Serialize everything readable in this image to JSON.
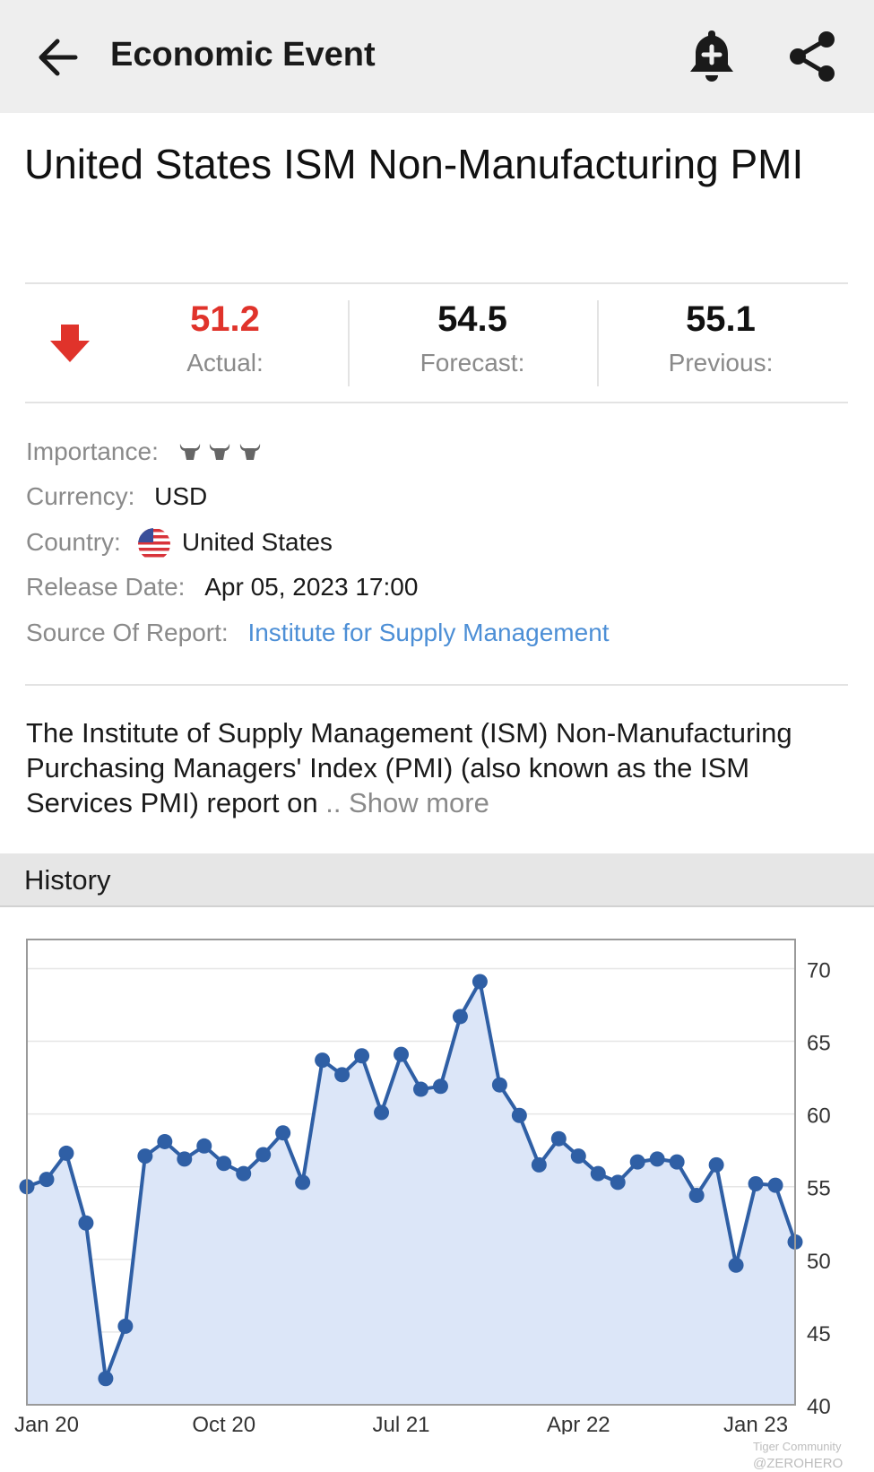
{
  "header": {
    "title": "Economic Event",
    "back_icon": "arrow-left-icon",
    "bell_icon": "bell-plus-icon",
    "share_icon": "share-icon"
  },
  "event": {
    "title": "United States ISM Non-Manufacturing PMI"
  },
  "stats": {
    "direction_icon": "arrow-down-icon",
    "actual_value": "51.2",
    "actual_label": "Actual:",
    "forecast_value": "54.5",
    "forecast_label": "Forecast:",
    "previous_value": "55.1",
    "previous_label": "Previous:",
    "actual_color": "#e0332b"
  },
  "info": {
    "importance_label": "Importance:",
    "importance_level": 3,
    "importance_icon": "bull-icon",
    "currency_label": "Currency:",
    "currency_value": "USD",
    "country_label": "Country:",
    "country_icon": "us-flag-icon",
    "country_value": "United States",
    "release_label": "Release Date:",
    "release_value": "Apr 05, 2023 17:00",
    "source_label": "Source Of Report:",
    "source_value": "Institute for Supply Management"
  },
  "description": {
    "text": "The Institute of Supply Management (ISM) Non-Manufacturing Purchasing Managers' Index (PMI) (also known as the ISM Services PMI) report on ",
    "show_more": ".. Show more"
  },
  "history": {
    "title": "History"
  },
  "chart_data": {
    "type": "area",
    "title": "",
    "xlabel": "",
    "ylabel": "",
    "ylim": [
      40,
      72
    ],
    "yticks": [
      40,
      45,
      50,
      55,
      60,
      65,
      70
    ],
    "y_axis_side": "right",
    "xtick_labels": [
      "Jan 20",
      "Oct 20",
      "Jul 21",
      "Apr 22",
      "Jan 23"
    ],
    "xtick_index": [
      1,
      10,
      19,
      28,
      37
    ],
    "x": [
      "Dec 19",
      "Jan 20",
      "Feb 20",
      "Mar 20",
      "Apr 20",
      "May 20",
      "Jun 20",
      "Jul 20",
      "Aug 20",
      "Sep 20",
      "Oct 20",
      "Nov 20",
      "Dec 20",
      "Jan 21",
      "Feb 21",
      "Mar 21",
      "Apr 21",
      "May 21",
      "Jun 21",
      "Jul 21",
      "Aug 21",
      "Sep 21",
      "Oct 21",
      "Nov 21",
      "Dec 21",
      "Jan 22",
      "Feb 22",
      "Mar 22",
      "Apr 22",
      "May 22",
      "Jun 22",
      "Jul 22",
      "Aug 22",
      "Sep 22",
      "Oct 22",
      "Nov 22",
      "Dec 22",
      "Jan 23",
      "Feb 23",
      "Mar 23"
    ],
    "series": [
      {
        "values": [
          55.0,
          55.5,
          57.3,
          52.5,
          41.8,
          45.4,
          57.1,
          58.1,
          56.9,
          57.8,
          56.6,
          55.9,
          57.2,
          58.7,
          55.3,
          63.7,
          62.7,
          64.0,
          60.1,
          64.1,
          61.7,
          61.9,
          66.7,
          69.1,
          62.0,
          59.9,
          56.5,
          58.3,
          57.1,
          55.9,
          55.3,
          56.7,
          56.9,
          56.7,
          54.4,
          56.5,
          49.6,
          55.2,
          55.1,
          51.2
        ],
        "line_color": "#2f5fa5",
        "fill_color": "#dce6f8"
      }
    ],
    "grid": true,
    "legend": "none"
  },
  "watermark": {
    "community": "Tiger Community",
    "handle": "@ZEROHERO"
  }
}
